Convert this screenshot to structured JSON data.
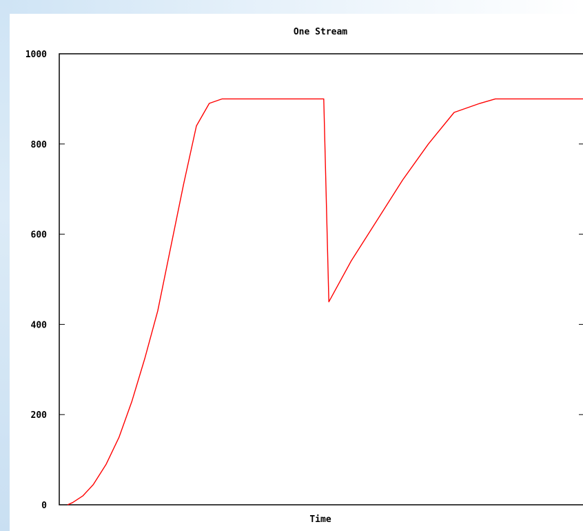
{
  "colors": {
    "background": "#ffffff",
    "frame": "#000000",
    "series": "#ff0000",
    "backdrop_light": "#e6f1fa",
    "backdrop_dark": "#cfe4f5"
  },
  "chart_data": {
    "type": "line",
    "title": "One Stream",
    "xlabel": "Time",
    "ylabel": "",
    "ylim": [
      0,
      1000
    ],
    "xlim": [
      0,
      100
    ],
    "yticks": [
      0,
      200,
      400,
      600,
      800,
      1000
    ],
    "ytick_labels": [
      "0",
      "200",
      "400",
      "600",
      "800",
      "1000"
    ],
    "grid": false,
    "legend": "none",
    "series": [
      {
        "color": "#ff0000",
        "x": [
          0,
          1,
          3,
          5,
          7.5,
          10,
          12.5,
          15,
          17.5,
          20,
          22.5,
          25,
          27.5,
          30,
          40,
          49.7,
          50.7,
          55,
          60,
          65,
          70,
          75,
          80,
          83,
          84.5,
          100
        ],
        "y": [
          0,
          5,
          20,
          45,
          90,
          150,
          230,
          325,
          430,
          570,
          710,
          840,
          890,
          900,
          900,
          900,
          450,
          540,
          630,
          720,
          800,
          870,
          890,
          900,
          900,
          900
        ]
      }
    ]
  }
}
